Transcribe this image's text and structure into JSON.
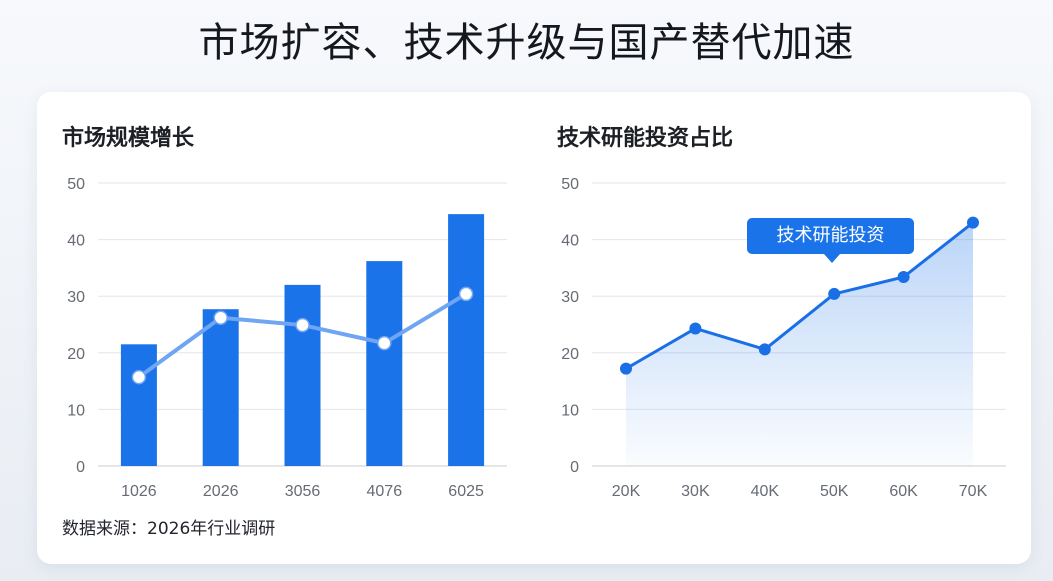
{
  "title": "市场扩容、技术升级与国产替代加速",
  "source_note": "数据来源：2026年行业调研",
  "colors": {
    "bar": "#1a73e8",
    "line_light": "#6fa5f3",
    "line_dark": "#1a6ee6",
    "callout": "#1a73e8"
  },
  "chart_data": [
    {
      "type": "bar",
      "title": "市场规模增长",
      "categories": [
        "1026",
        "2026",
        "3056",
        "4076",
        "6025"
      ],
      "series": [
        {
          "type": "bar",
          "values": [
            21.5,
            27.7,
            32,
            36.2,
            44.5
          ]
        },
        {
          "type": "line",
          "values": [
            15.7,
            26.2,
            24.9,
            21.7,
            30.4
          ]
        }
      ],
      "ylim": [
        0,
        50
      ],
      "yticks": [
        0,
        10,
        20,
        30,
        40,
        50
      ],
      "grid": true
    },
    {
      "type": "area",
      "title": "技术研能投资占比",
      "categories": [
        "20K",
        "30K",
        "40K",
        "50K",
        "60K",
        "70K"
      ],
      "series": [
        {
          "name": "技术研能投资",
          "values": [
            17.2,
            24.3,
            20.6,
            30.4,
            33.4,
            43
          ]
        }
      ],
      "ylim": [
        0,
        50
      ],
      "yticks": [
        0,
        10,
        20,
        30,
        40,
        50
      ],
      "grid": true,
      "annotation": "技术研能投资"
    }
  ]
}
